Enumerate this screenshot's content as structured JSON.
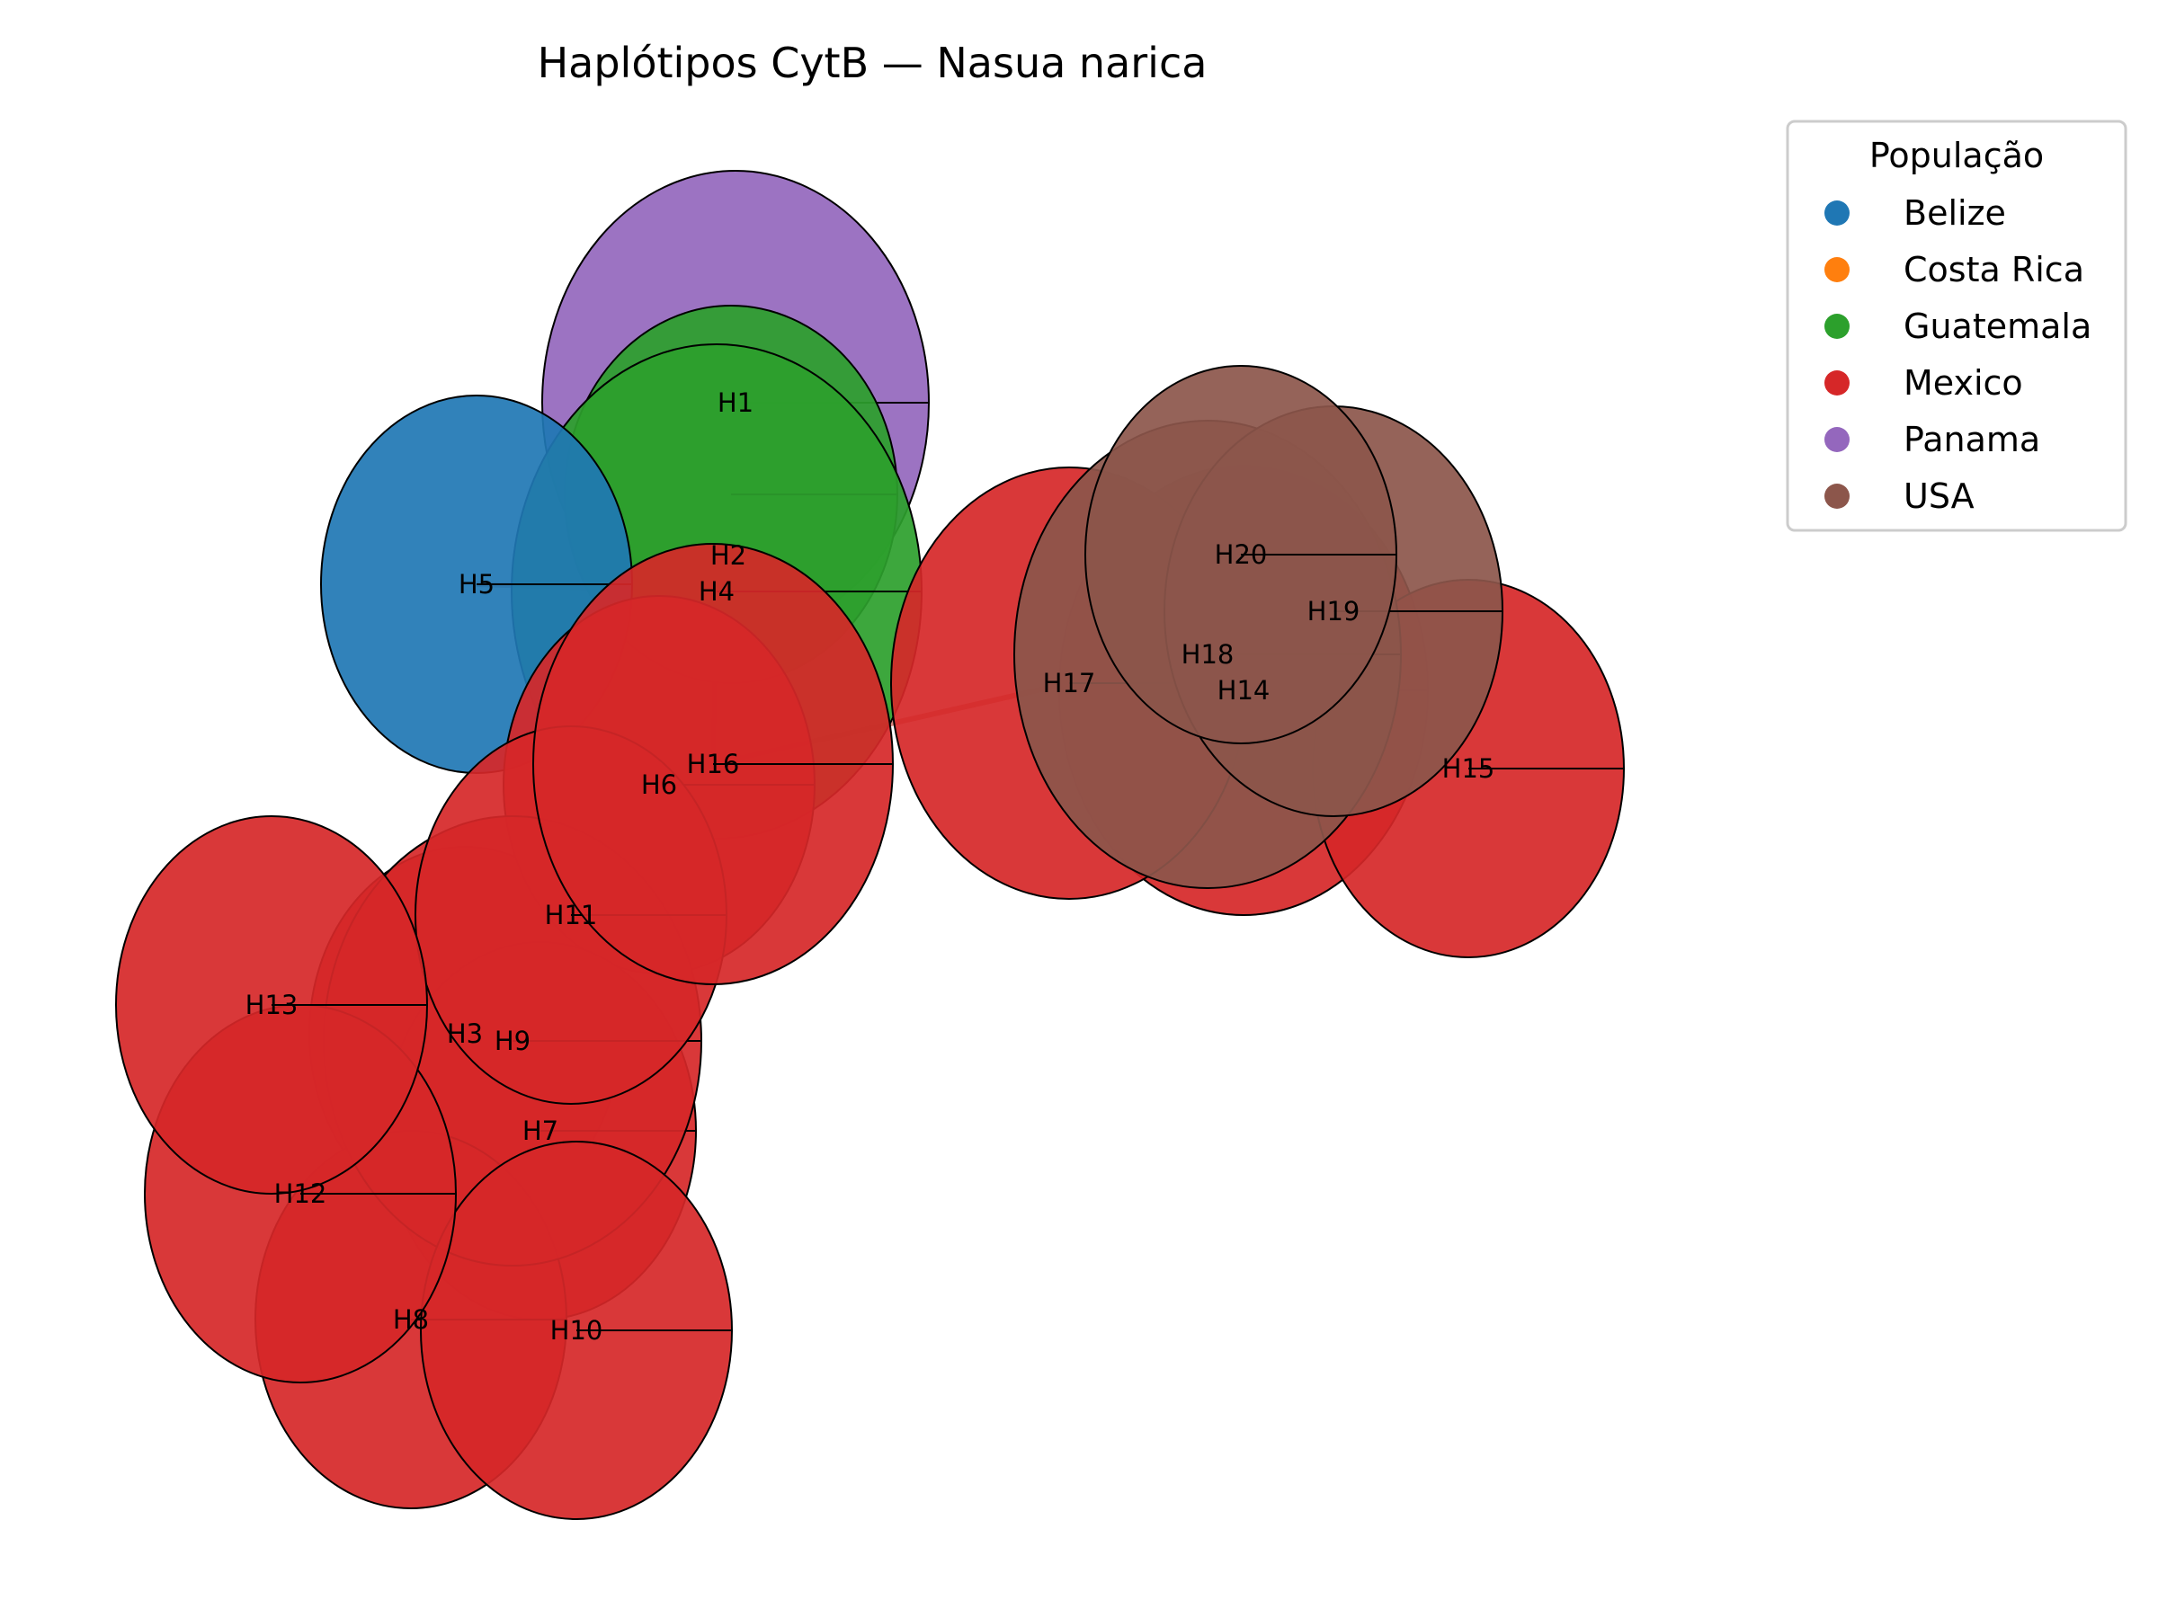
{
  "title": "Haplótipos CytB — Nasua narica",
  "legend": {
    "title": "População",
    "entries": [
      {
        "label": "Belize",
        "color": "#1f77b4"
      },
      {
        "label": "Costa Rica",
        "color": "#ff7f0e"
      },
      {
        "label": "Guatemala",
        "color": "#2ca02c"
      },
      {
        "label": "Mexico",
        "color": "#d62728"
      },
      {
        "label": "Panama",
        "color": "#9467bd"
      },
      {
        "label": "USA",
        "color": "#8c564b"
      }
    ]
  },
  "haplotypes": [
    {
      "id": "H1",
      "population": "Panama"
    },
    {
      "id": "H2",
      "population": "Guatemala"
    },
    {
      "id": "H3",
      "population": "Mexico"
    },
    {
      "id": "H4",
      "population": "Guatemala"
    },
    {
      "id": "H5",
      "population": "Belize"
    },
    {
      "id": "H6",
      "population": "Mexico"
    },
    {
      "id": "H7",
      "population": "Mexico"
    },
    {
      "id": "H8",
      "population": "Mexico"
    },
    {
      "id": "H9",
      "population": "Mexico"
    },
    {
      "id": "H10",
      "population": "Mexico"
    },
    {
      "id": "H11",
      "population": "Mexico"
    },
    {
      "id": "H12",
      "population": "Mexico"
    },
    {
      "id": "H13",
      "population": "Mexico"
    },
    {
      "id": "H14",
      "population": "Mexico"
    },
    {
      "id": "H15",
      "population": "Mexico"
    },
    {
      "id": "H16",
      "population": "Mexico"
    },
    {
      "id": "H17",
      "population": "Mexico"
    },
    {
      "id": "H18",
      "population": "USA"
    },
    {
      "id": "H19",
      "population": "USA"
    },
    {
      "id": "H20",
      "population": "USA"
    }
  ],
  "edges": [
    [
      "H5",
      "H4"
    ],
    [
      "H4",
      "H16"
    ],
    [
      "H16",
      "H17"
    ]
  ]
}
